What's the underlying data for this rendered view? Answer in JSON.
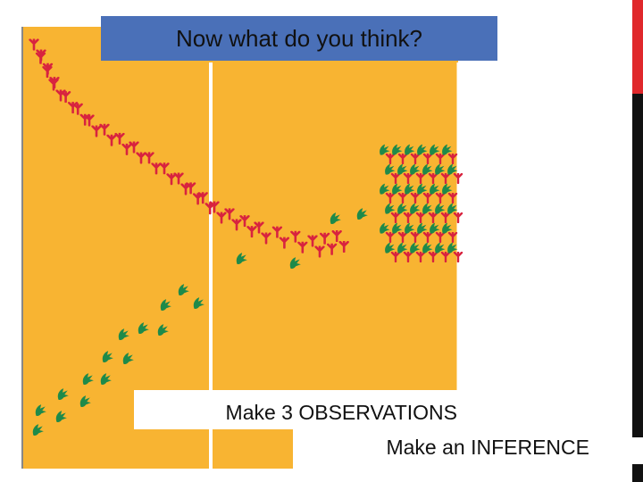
{
  "title": "Now what do you think?",
  "prompts": [
    "Make 3 OBSERVATIONS",
    "Make an INFERENCE"
  ]
}
